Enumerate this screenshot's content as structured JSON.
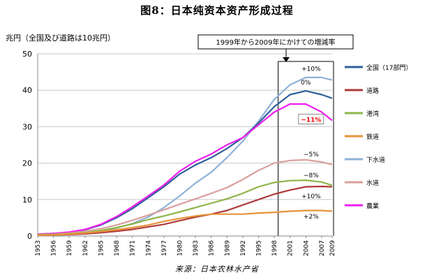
{
  "page": {
    "title": "图8：日本纯资本资产形成过程",
    "source": "来源：日本农林水产省"
  },
  "chart_data": {
    "type": "line",
    "title": "",
    "ylabel": "兆円（全国及び道路は10兆円）",
    "xlabel": "",
    "ylim": [
      0,
      50
    ],
    "yticks": [
      0,
      10,
      20,
      30,
      40,
      50
    ],
    "xticks": [
      1953,
      1956,
      1959,
      1962,
      1965,
      1968,
      1971,
      1974,
      1977,
      1980,
      1983,
      1986,
      1989,
      1992,
      1995,
      1998,
      2001,
      2004,
      2007,
      2009
    ],
    "xlim": [
      1953,
      2009
    ],
    "grid": true,
    "legend_position": "right",
    "annotation_box": "1999年から2009年にかけての増減率",
    "highlight_range": [
      1999,
      2009
    ],
    "series": [
      {
        "name": "全国（17部門）",
        "color": "#2e5f9a",
        "x": [
          1953,
          1956,
          1959,
          1962,
          1965,
          1968,
          1971,
          1974,
          1977,
          1980,
          1983,
          1986,
          1989,
          1992,
          1995,
          1998,
          2001,
          2004,
          2007,
          2009
        ],
        "values": [
          0.5,
          0.7,
          1.0,
          1.7,
          3.0,
          5.0,
          7.5,
          10.5,
          13.5,
          17.0,
          19.5,
          21.5,
          24.0,
          27.0,
          31.0,
          35.5,
          38.8,
          39.8,
          38.8,
          37.8
        ]
      },
      {
        "name": "道路",
        "color": "#b03a3a",
        "x": [
          1953,
          1956,
          1959,
          1962,
          1965,
          1968,
          1971,
          1974,
          1977,
          1980,
          1983,
          1986,
          1989,
          1992,
          1995,
          1998,
          2001,
          2004,
          2007,
          2009
        ],
        "values": [
          0.2,
          0.3,
          0.4,
          0.6,
          0.9,
          1.3,
          1.8,
          2.5,
          3.2,
          4.2,
          5.2,
          6.0,
          7.0,
          8.5,
          10.0,
          11.5,
          12.6,
          13.5,
          13.6,
          13.5
        ]
      },
      {
        "name": "港湾",
        "color": "#8db548",
        "x": [
          1953,
          1956,
          1959,
          1962,
          1965,
          1968,
          1971,
          1974,
          1977,
          1980,
          1983,
          1986,
          1989,
          1992,
          1995,
          1998,
          2001,
          2004,
          2007,
          2009
        ],
        "values": [
          0.3,
          0.4,
          0.6,
          0.9,
          1.5,
          2.3,
          3.3,
          4.5,
          5.5,
          6.6,
          7.8,
          9.0,
          10.2,
          11.7,
          13.5,
          14.7,
          15.2,
          15.3,
          14.8,
          13.9
        ]
      },
      {
        "name": "鉄道",
        "color": "#e8923a",
        "x": [
          1953,
          1956,
          1959,
          1962,
          1965,
          1968,
          1971,
          1974,
          1977,
          1980,
          1983,
          1986,
          1989,
          1992,
          1995,
          1998,
          2001,
          2004,
          2007,
          2009
        ],
        "values": [
          0.2,
          0.3,
          0.5,
          0.8,
          1.2,
          1.7,
          2.3,
          3.0,
          4.0,
          4.8,
          5.5,
          6.0,
          6.0,
          6.0,
          6.3,
          6.5,
          6.8,
          7.0,
          7.0,
          6.8
        ]
      },
      {
        "name": "下水道",
        "color": "#8fb1d8",
        "x": [
          1953,
          1956,
          1959,
          1962,
          1965,
          1968,
          1971,
          1974,
          1977,
          1980,
          1983,
          1986,
          1989,
          1992,
          1995,
          1998,
          2001,
          2004,
          2007,
          2009
        ],
        "values": [
          0.2,
          0.3,
          0.5,
          0.8,
          1.3,
          2.2,
          3.4,
          5.2,
          7.8,
          11.0,
          14.5,
          17.5,
          21.5,
          26.0,
          31.5,
          37.5,
          41.5,
          43.5,
          43.5,
          42.8
        ]
      },
      {
        "name": "水道",
        "color": "#d9a09c",
        "x": [
          1953,
          1956,
          1959,
          1962,
          1965,
          1968,
          1971,
          1974,
          1977,
          1980,
          1983,
          1986,
          1989,
          1992,
          1995,
          1998,
          2001,
          2004,
          2007,
          2009
        ],
        "values": [
          0.4,
          0.5,
          0.8,
          1.3,
          2.0,
          3.0,
          4.3,
          5.7,
          7.2,
          8.7,
          10.2,
          11.7,
          13.3,
          15.5,
          18.0,
          20.0,
          20.7,
          20.9,
          20.3,
          19.6
        ]
      },
      {
        "name": "農業",
        "color": "#ee1fee",
        "x": [
          1953,
          1956,
          1959,
          1962,
          1965,
          1968,
          1971,
          1974,
          1977,
          1980,
          1983,
          1986,
          1989,
          1992,
          1995,
          1998,
          2001,
          2004,
          2007,
          2009
        ],
        "values": [
          0.5,
          0.7,
          1.1,
          1.8,
          3.2,
          5.3,
          8.0,
          11.0,
          14.0,
          17.8,
          20.5,
          22.5,
          25.0,
          27.0,
          30.5,
          34.0,
          36.2,
          36.2,
          34.0,
          31.7
        ]
      }
    ],
    "annotations": [
      {
        "text": "+10%",
        "x": 2005,
        "y": 45.5,
        "color": "#000000"
      },
      {
        "text": "0%",
        "x": 2004,
        "y": 41.8,
        "color": "#000000"
      },
      {
        "text": "−11%",
        "x": 2005,
        "y": 31.5,
        "color": "#ff0000",
        "boxed": true
      },
      {
        "text": "−5%",
        "x": 2005,
        "y": 22.0,
        "color": "#000000"
      },
      {
        "text": "−8%",
        "x": 2005,
        "y": 16.3,
        "color": "#000000"
      },
      {
        "text": "+10%",
        "x": 2005,
        "y": 10.5,
        "color": "#000000"
      },
      {
        "text": "+2%",
        "x": 2005,
        "y": 5.0,
        "color": "#000000"
      }
    ]
  }
}
